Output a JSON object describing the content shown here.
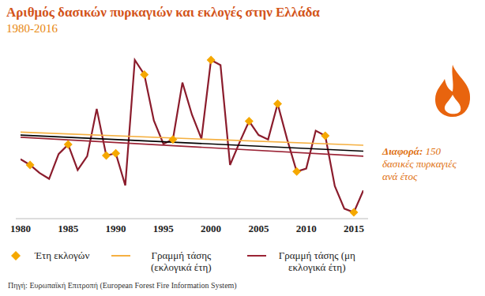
{
  "chart_data": {
    "type": "line",
    "title": "Αριθμός δασικών πυρκαγιών και εκλογές στην Ελλάδα",
    "subtitle": "1980-2016",
    "x": [
      1980,
      1981,
      1982,
      1983,
      1984,
      1985,
      1986,
      1987,
      1988,
      1989,
      1990,
      1991,
      1992,
      1993,
      1994,
      1995,
      1996,
      1997,
      1998,
      1999,
      2000,
      2001,
      2002,
      2003,
      2004,
      2005,
      2006,
      2007,
      2008,
      2009,
      2010,
      2011,
      2012,
      2013,
      2014,
      2015,
      2016
    ],
    "xlim": [
      1980,
      2016
    ],
    "xticks": [
      1980,
      1985,
      1990,
      1995,
      2000,
      2005,
      2010,
      2015
    ],
    "tick_labels": "x",
    "grid": false,
    "series": [
      {
        "color": "#8b1c2c",
        "values": [
          1230,
          1150,
          1040,
          960,
          1300,
          1430,
          1080,
          1270,
          1920,
          1280,
          1310,
          870,
          2590,
          2390,
          1760,
          1440,
          1500,
          2280,
          1840,
          1510,
          2590,
          2520,
          1150,
          1460,
          1750,
          1560,
          1500,
          1990,
          1500,
          1060,
          1100,
          1620,
          1550,
          860,
          550,
          500,
          800
        ]
      },
      {
        "name": "Έτη εκλογών",
        "type": "scatter",
        "marker": "diamond",
        "color": "#f5a800",
        "values": [
          null,
          1150,
          null,
          null,
          null,
          1430,
          null,
          null,
          null,
          1280,
          1310,
          null,
          null,
          2390,
          null,
          null,
          1500,
          null,
          null,
          null,
          2590,
          null,
          null,
          null,
          1750,
          null,
          null,
          1990,
          null,
          1060,
          null,
          null,
          1550,
          null,
          null,
          500,
          null
        ]
      },
      {
        "name": "Γραμμή τάσης (εκλογικά έτη)",
        "color": "#f5b041",
        "values": [
          1600,
          null,
          null,
          null,
          null,
          null,
          null,
          null,
          null,
          null,
          null,
          null,
          null,
          null,
          null,
          null,
          null,
          null,
          null,
          null,
          null,
          null,
          null,
          null,
          null,
          null,
          null,
          null,
          null,
          null,
          null,
          null,
          null,
          null,
          null,
          null,
          1420
        ]
      },
      {
        "name": "Γραμμή τάσης (μη εκλογικά έτη)",
        "color": "#9b2335",
        "values": [
          1530,
          null,
          null,
          null,
          null,
          null,
          null,
          null,
          null,
          null,
          null,
          null,
          null,
          null,
          null,
          null,
          null,
          null,
          null,
          null,
          null,
          null,
          null,
          null,
          null,
          null,
          null,
          null,
          null,
          null,
          null,
          null,
          null,
          null,
          null,
          null,
          1270
        ]
      },
      {
        "color": "#000000",
        "values": [
          1560,
          null,
          null,
          null,
          null,
          null,
          null,
          null,
          null,
          null,
          null,
          null,
          null,
          null,
          null,
          null,
          null,
          null,
          null,
          null,
          null,
          null,
          null,
          null,
          null,
          null,
          null,
          null,
          null,
          null,
          null,
          null,
          null,
          null,
          null,
          null,
          1340
        ]
      }
    ],
    "annotation": {
      "label": "Διαφορά:",
      "text": "150 δασικές πυρκαγιές ανά έτος"
    },
    "source": "Πηγή: Ευρωπαϊκή Επιτροπή (European Forest Fire Information System)"
  }
}
